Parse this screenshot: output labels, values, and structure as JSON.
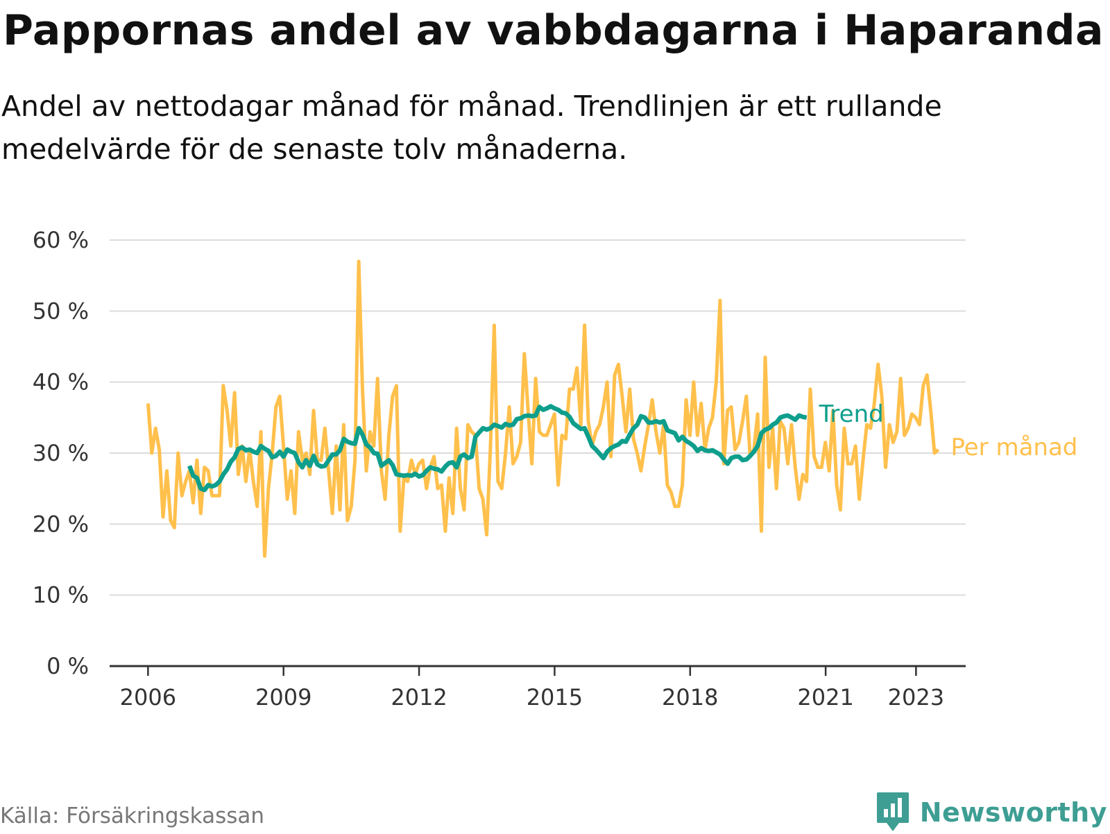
{
  "title": "Pappornas andel av vabbdagarna i Haparanda",
  "subtitle": "Andel av nettodagar månad för månad. Trendlinjen är ett rullande medelvärde för de senaste tolv månaderna.",
  "source": "Källa: Försäkringskassan",
  "brand": "Newsworthy",
  "brand_icon": "newsworthy-logo-icon",
  "colors": {
    "monthly": "#ffc04c",
    "trend": "#0e9e8c",
    "grid": "#dcdcdc",
    "axis": "#333333",
    "brand": "#3e9e93"
  },
  "chart_data": {
    "type": "line",
    "title": "Pappornas andel av vabbdagarna i Haparanda",
    "xlabel": "",
    "ylabel": "",
    "ylim": [
      0,
      60
    ],
    "xlim": [
      2005.15,
      2024.1
    ],
    "y_ticks": [
      0,
      10,
      20,
      30,
      40,
      50,
      60
    ],
    "y_tick_labels": [
      "0 %",
      "10 %",
      "20 %",
      "30 %",
      "40 %",
      "50 %",
      "60 %"
    ],
    "x_ticks": [
      2006,
      2009,
      2012,
      2015,
      2018,
      2021,
      2023
    ],
    "x_tick_labels": [
      "2006",
      "2009",
      "2012",
      "2015",
      "2018",
      "2021",
      "2023"
    ],
    "grid": "horizontal",
    "legend": "direct labels at line ends",
    "series": [
      {
        "name": "Per månad",
        "x_start": 2006.0,
        "step": 0.0833,
        "values": [
          37,
          30,
          33.5,
          30.5,
          21,
          27.5,
          20.5,
          19.5,
          30,
          24,
          26,
          27.5,
          23,
          29,
          21.5,
          28,
          27.5,
          24,
          24,
          24,
          39.5,
          36,
          31,
          38.5,
          27,
          31,
          26,
          30.5,
          26,
          22.5,
          33,
          15.5,
          25,
          30,
          36.5,
          38,
          31,
          23.5,
          27.5,
          21.5,
          33,
          29,
          30,
          27,
          36,
          29,
          29,
          33.5,
          27.5,
          21.5,
          31,
          22,
          34,
          20.5,
          22.5,
          29,
          57,
          39,
          27.5,
          33,
          31,
          40.5,
          27.5,
          23.5,
          32.5,
          38,
          39.5,
          19,
          26.5,
          26,
          29,
          27,
          28.5,
          29,
          25,
          28,
          29.5,
          25,
          25.5,
          19,
          26.5,
          21.5,
          33.5,
          25,
          22,
          34,
          33,
          32.5,
          25,
          23.5,
          18.5,
          31,
          48,
          26,
          25,
          30,
          36.5,
          28.5,
          29.5,
          31.5,
          44,
          36,
          28.5,
          40.5,
          33,
          32.5,
          32.5,
          34,
          35.5,
          25.5,
          32.5,
          32,
          39,
          39,
          42,
          34,
          48,
          34.5,
          31,
          33,
          34,
          36.5,
          40,
          29.5,
          41,
          42.5,
          38,
          33,
          39,
          32,
          30,
          27.5,
          31,
          34,
          37.5,
          33,
          30,
          34,
          25.5,
          24.5,
          22.5,
          22.5,
          25.5,
          37.5,
          32.5,
          40,
          32.5,
          37,
          30.5,
          33.5,
          35,
          40,
          51.5,
          28.5,
          36,
          36.5,
          30.5,
          31.5,
          34.5,
          38,
          29.5,
          30.5,
          35.5,
          19,
          43.5,
          28,
          33.5,
          25,
          34.5,
          33.5,
          28.5,
          34,
          28,
          23.5,
          27,
          26,
          39,
          29.5,
          28,
          28,
          31.5,
          27.5,
          36,
          25.5,
          22,
          33.5,
          28.5,
          28.5,
          31,
          23.5,
          29,
          34,
          33.5,
          37,
          42.5,
          38,
          28,
          34,
          31.5,
          33,
          40.5,
          32.5,
          33.5,
          35.5,
          35,
          34,
          39.5,
          41,
          36,
          30,
          30.5
        ]
      },
      {
        "name": "Trend",
        "x_start": 2006.917,
        "step": 0.0833,
        "values": [
          28.2,
          26.8,
          26.5,
          25,
          24.8,
          25.5,
          25.3,
          25.5,
          26,
          27,
          27.7,
          28.8,
          29.4,
          30.6,
          30.8,
          30.4,
          30.5,
          30.2,
          30,
          31,
          30.6,
          30.3,
          29.4,
          29.6,
          30.2,
          29.5,
          30.5,
          30.2,
          30,
          28.7,
          28,
          29,
          28.2,
          29.6,
          28.4,
          28.1,
          28.2,
          29,
          29.8,
          29.8,
          30.4,
          32,
          31.6,
          31.4,
          31.3,
          33.5,
          32.6,
          31.2,
          30.8,
          30,
          29.9,
          28.2,
          28.6,
          29,
          28.3,
          27,
          26.9,
          26.8,
          26.9,
          26.8,
          27.1,
          26.7,
          26.9,
          27.5,
          28,
          27.8,
          27.7,
          27.4,
          28.1,
          28.6,
          28.7,
          28,
          29.5,
          29.8,
          29.3,
          29.5,
          32.3,
          32.9,
          33.5,
          33.3,
          33.5,
          34,
          33.8,
          33.6,
          34.1,
          33.9,
          34,
          34.8,
          34.9,
          35.2,
          35.3,
          35.2,
          35.3,
          36.5,
          36.1,
          36.3,
          36.6,
          36.3,
          36.1,
          35.7,
          35.6,
          35.1,
          34.2,
          33.8,
          33.4,
          33.5,
          32.3,
          31,
          30.5,
          29.9,
          29.3,
          30.2,
          30.7,
          31,
          31.2,
          31.7,
          31.6,
          32.6,
          33.5,
          34,
          35.2,
          35,
          34.3,
          34.3,
          34.5,
          34.3,
          34.5,
          33.2,
          33,
          32.8,
          31.8,
          32.3,
          31.7,
          31.4,
          31,
          30.3,
          30.7,
          30.4,
          30.3,
          30.4,
          30.1,
          29.8,
          29.1,
          28.5,
          29.3,
          29.5,
          29.5,
          29,
          29.1,
          29.6,
          30.2,
          31,
          32.8,
          33.3,
          33.5,
          34,
          34.3,
          35,
          35.2,
          35.3,
          35,
          34.7,
          35.3,
          35.1,
          35
        ]
      }
    ]
  }
}
